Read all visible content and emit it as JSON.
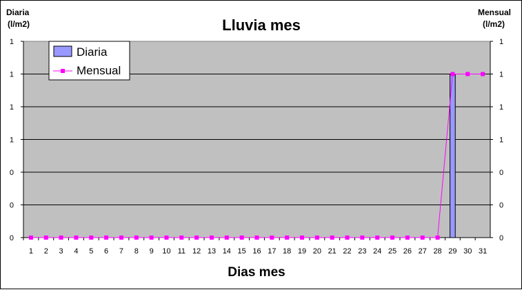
{
  "chart_data": {
    "type": "bar",
    "title": "Lluvia mes",
    "xlabel": "Dias mes",
    "ylabel_left_line1": "Diaria",
    "ylabel_left_line2": "(l/m2)",
    "ylabel_right_line1": "Mensual",
    "ylabel_right_line2": "(l/m2)",
    "y_tick_labels": [
      "0",
      "0",
      "0",
      "1",
      "1",
      "1",
      "1"
    ],
    "ylim": [
      0,
      1.2
    ],
    "categories": [
      "1",
      "2",
      "3",
      "4",
      "5",
      "6",
      "7",
      "8",
      "9",
      "10",
      "11",
      "12",
      "13",
      "14",
      "15",
      "16",
      "17",
      "18",
      "19",
      "20",
      "21",
      "22",
      "23",
      "24",
      "25",
      "26",
      "27",
      "28",
      "29",
      "30",
      "31"
    ],
    "series": [
      {
        "name": "Diaria",
        "type": "bar",
        "axis": "left",
        "color": "#9999ff",
        "values": [
          0,
          0,
          0,
          0,
          0,
          0,
          0,
          0,
          0,
          0,
          0,
          0,
          0,
          0,
          0,
          0,
          0,
          0,
          0,
          0,
          0,
          0,
          0,
          0,
          0,
          0,
          0,
          0,
          1,
          0,
          0
        ]
      },
      {
        "name": "Mensual",
        "type": "line",
        "axis": "right",
        "color": "#ff00ff",
        "values": [
          0,
          0,
          0,
          0,
          0,
          0,
          0,
          0,
          0,
          0,
          0,
          0,
          0,
          0,
          0,
          0,
          0,
          0,
          0,
          0,
          0,
          0,
          0,
          0,
          0,
          0,
          0,
          0,
          1,
          1,
          1
        ]
      }
    ],
    "legend": "top-left",
    "grid": true,
    "plot_background": "#c0c0c0"
  }
}
